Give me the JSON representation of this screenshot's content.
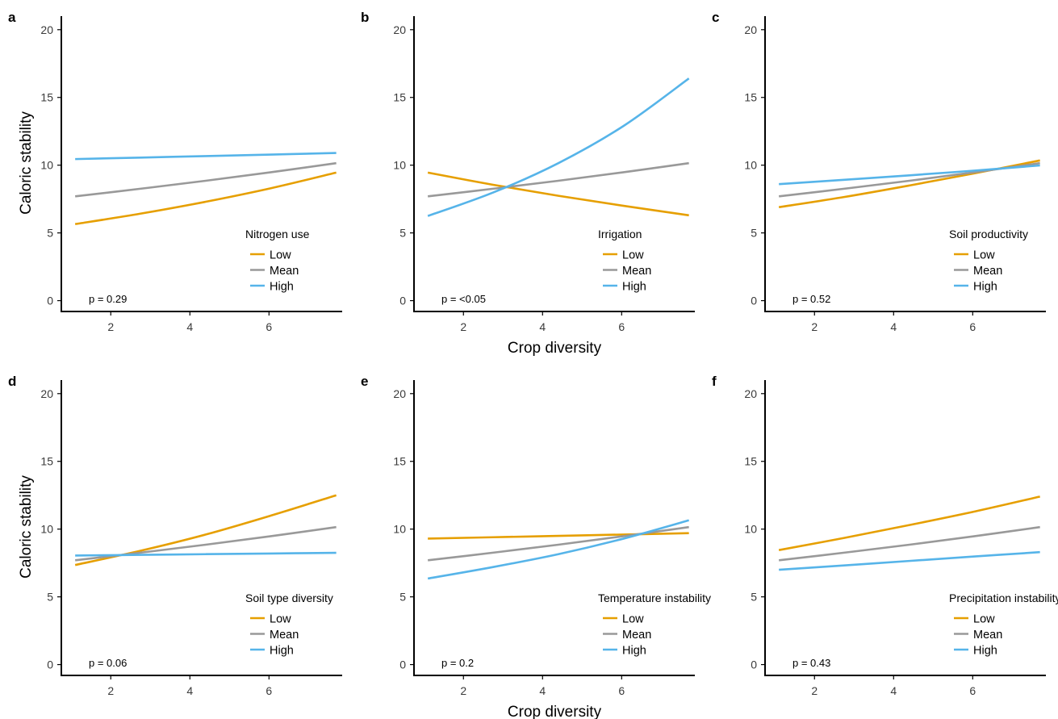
{
  "figure": {
    "xlabel": "Crop diversity",
    "ylabel": "Caloric stability",
    "colors": {
      "Low": "#E69F00",
      "Mean": "#999999",
      "High": "#56B4E9"
    }
  },
  "chart_data": [
    {
      "panel": "a",
      "type": "line",
      "xlim": [
        0.75,
        7.85
      ],
      "ylim": [
        -0.8,
        21
      ],
      "xticks": [
        2,
        4,
        6
      ],
      "yticks": [
        0,
        5,
        10,
        15,
        20
      ],
      "legend_title": "Nitrogen use",
      "legend_position": "bottom-right",
      "annotation": "p = 0.29",
      "series": [
        {
          "name": "Low",
          "color": "#E69F00",
          "x": [
            1.1,
            2.75,
            4.4,
            6.05,
            7.7
          ],
          "y": [
            5.65,
            6.42,
            7.3,
            8.3,
            9.45
          ]
        },
        {
          "name": "Mean",
          "color": "#999999",
          "x": [
            1.1,
            2.75,
            4.4,
            6.05,
            7.7
          ],
          "y": [
            7.7,
            8.26,
            8.85,
            9.48,
            10.15
          ]
        },
        {
          "name": "High",
          "color": "#56B4E9",
          "x": [
            1.1,
            2.75,
            4.4,
            6.05,
            7.7
          ],
          "y": [
            10.45,
            10.56,
            10.67,
            10.78,
            10.9
          ]
        }
      ]
    },
    {
      "panel": "b",
      "type": "line",
      "xlim": [
        0.75,
        7.85
      ],
      "ylim": [
        -0.8,
        21
      ],
      "xticks": [
        2,
        4,
        6
      ],
      "yticks": [
        0,
        5,
        10,
        15,
        20
      ],
      "xlabel": "Crop diversity",
      "legend_title": "Irrigation",
      "legend_position": "bottom-right",
      "annotation": "p = <0.05",
      "series": [
        {
          "name": "Low",
          "color": "#E69F00",
          "x": [
            1.1,
            2.75,
            4.4,
            6.05,
            7.7
          ],
          "y": [
            9.45,
            8.55,
            7.74,
            7.0,
            6.3
          ]
        },
        {
          "name": "Mean",
          "color": "#999999",
          "x": [
            1.1,
            2.75,
            4.4,
            6.05,
            7.7
          ],
          "y": [
            7.7,
            8.26,
            8.85,
            9.48,
            10.15
          ]
        },
        {
          "name": "High",
          "color": "#56B4E9",
          "x": [
            1.1,
            2.75,
            4.4,
            6.05,
            7.7
          ],
          "y": [
            6.25,
            7.98,
            10.15,
            12.9,
            16.4
          ]
        }
      ]
    },
    {
      "panel": "c",
      "type": "line",
      "xlim": [
        0.75,
        7.85
      ],
      "ylim": [
        -0.8,
        21
      ],
      "xticks": [
        2,
        4,
        6
      ],
      "yticks": [
        0,
        5,
        10,
        15,
        20
      ],
      "legend_title": "Soil productivity",
      "legend_position": "bottom-right",
      "annotation": "p = 0.52",
      "series": [
        {
          "name": "Low",
          "color": "#E69F00",
          "x": [
            1.1,
            2.75,
            4.4,
            6.05,
            7.7
          ],
          "y": [
            6.9,
            7.65,
            8.5,
            9.4,
            10.35
          ]
        },
        {
          "name": "Mean",
          "color": "#999999",
          "x": [
            1.1,
            2.75,
            4.4,
            6.05,
            7.7
          ],
          "y": [
            7.7,
            8.26,
            8.85,
            9.48,
            10.15
          ]
        },
        {
          "name": "High",
          "color": "#56B4E9",
          "x": [
            1.1,
            2.75,
            4.4,
            6.05,
            7.7
          ],
          "y": [
            8.6,
            8.92,
            9.25,
            9.6,
            9.98
          ]
        }
      ]
    },
    {
      "panel": "d",
      "type": "line",
      "xlim": [
        0.75,
        7.85
      ],
      "ylim": [
        -0.8,
        21
      ],
      "xticks": [
        2,
        4,
        6
      ],
      "yticks": [
        0,
        5,
        10,
        15,
        20
      ],
      "legend_title": "Soil type diversity",
      "legend_position": "bottom-right",
      "annotation": "p = 0.06",
      "series": [
        {
          "name": "Low",
          "color": "#E69F00",
          "x": [
            1.1,
            2.75,
            4.4,
            6.05,
            7.7
          ],
          "y": [
            7.35,
            8.4,
            9.6,
            11.0,
            12.5
          ]
        },
        {
          "name": "Mean",
          "color": "#999999",
          "x": [
            1.1,
            2.75,
            4.4,
            6.05,
            7.7
          ],
          "y": [
            7.7,
            8.26,
            8.85,
            9.48,
            10.15
          ]
        },
        {
          "name": "High",
          "color": "#56B4E9",
          "x": [
            1.1,
            2.75,
            4.4,
            6.05,
            7.7
          ],
          "y": [
            8.05,
            8.1,
            8.15,
            8.2,
            8.25
          ]
        }
      ]
    },
    {
      "panel": "e",
      "type": "line",
      "xlim": [
        0.75,
        7.85
      ],
      "ylim": [
        -0.8,
        21
      ],
      "xticks": [
        2,
        4,
        6
      ],
      "yticks": [
        0,
        5,
        10,
        15,
        20
      ],
      "xlabel": "Crop diversity",
      "legend_title": "Temperature instability",
      "legend_position": "bottom-right",
      "annotation": "p = 0.2",
      "series": [
        {
          "name": "Low",
          "color": "#E69F00",
          "x": [
            1.1,
            2.75,
            4.4,
            6.05,
            7.7
          ],
          "y": [
            9.3,
            9.4,
            9.5,
            9.6,
            9.7
          ]
        },
        {
          "name": "Mean",
          "color": "#999999",
          "x": [
            1.1,
            2.75,
            4.4,
            6.05,
            7.7
          ],
          "y": [
            7.7,
            8.26,
            8.85,
            9.48,
            10.15
          ]
        },
        {
          "name": "High",
          "color": "#56B4E9",
          "x": [
            1.1,
            2.75,
            4.4,
            6.05,
            7.7
          ],
          "y": [
            6.35,
            7.2,
            8.15,
            9.3,
            10.65
          ]
        }
      ]
    },
    {
      "panel": "f",
      "type": "line",
      "xlim": [
        0.75,
        7.85
      ],
      "ylim": [
        -0.8,
        21
      ],
      "xticks": [
        2,
        4,
        6
      ],
      "yticks": [
        0,
        5,
        10,
        15,
        20
      ],
      "legend_title": "Precipitation instability",
      "legend_position": "bottom-right",
      "annotation": "p = 0.43",
      "series": [
        {
          "name": "Low",
          "color": "#E69F00",
          "x": [
            1.1,
            2.75,
            4.4,
            6.05,
            7.7
          ],
          "y": [
            8.45,
            9.35,
            10.3,
            11.3,
            12.4
          ]
        },
        {
          "name": "Mean",
          "color": "#999999",
          "x": [
            1.1,
            2.75,
            4.4,
            6.05,
            7.7
          ],
          "y": [
            7.7,
            8.26,
            8.85,
            9.48,
            10.15
          ]
        },
        {
          "name": "High",
          "color": "#56B4E9",
          "x": [
            1.1,
            2.75,
            4.4,
            6.05,
            7.7
          ],
          "y": [
            7.0,
            7.32,
            7.65,
            7.98,
            8.3
          ]
        }
      ]
    }
  ]
}
